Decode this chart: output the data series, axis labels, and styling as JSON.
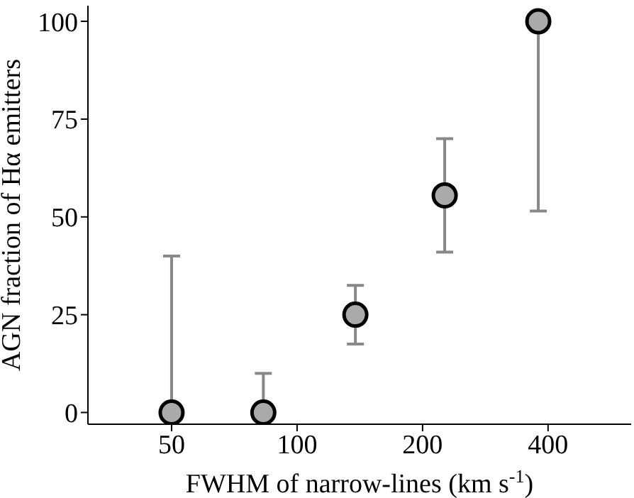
{
  "chart_data": {
    "type": "scatter",
    "xlabel": "FWHM of narrow-lines (km s$^{-1}$)",
    "ylabel": "AGN fraction of Hα emitters",
    "x": [
      50,
      83,
      138,
      226,
      379
    ],
    "values": [
      0,
      0,
      25,
      55.5,
      100
    ],
    "errors": [
      [
        0,
        40
      ],
      [
        0,
        10
      ],
      [
        17.5,
        32.5
      ],
      [
        41,
        70
      ],
      [
        51.5,
        100
      ]
    ],
    "color": "#aaaaaa",
    "marker": "circle",
    "log": "x",
    "xlim": [
      31.5,
      633
    ],
    "xticks": [
      50,
      100,
      200,
      400
    ],
    "ylim": [
      -3,
      104
    ],
    "yticks": [
      0,
      25,
      50,
      75,
      100
    ],
    "grid": false,
    "legend": false
  }
}
